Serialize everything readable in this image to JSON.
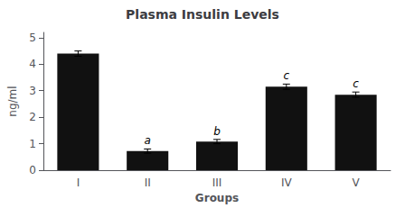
{
  "chart_data": {
    "type": "bar",
    "title": "Plasma Insulin Levels",
    "xlabel": "Groups",
    "ylabel": "ng/ml",
    "categories": [
      "I",
      "II",
      "III",
      "IV",
      "V"
    ],
    "values": [
      4.4,
      0.72,
      1.08,
      3.15,
      2.85
    ],
    "errors": [
      0.1,
      0.08,
      0.08,
      0.1,
      0.1
    ],
    "annotations": [
      null,
      "a",
      "b",
      "c",
      "c"
    ],
    "color": "#111111",
    "ylim": [
      0,
      5.2
    ],
    "yticks": [
      0,
      1,
      2,
      3,
      4,
      5
    ],
    "grid": false
  }
}
